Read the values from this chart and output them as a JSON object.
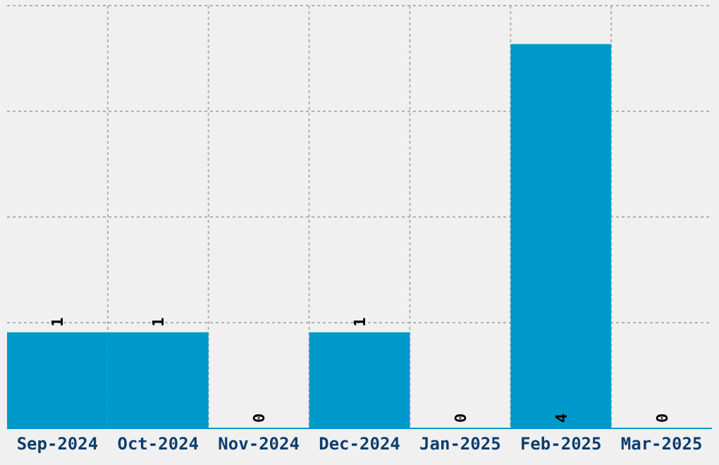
{
  "chart_data": {
    "type": "bar",
    "categories": [
      "Sep-2024",
      "Oct-2024",
      "Nov-2024",
      "Dec-2024",
      "Jan-2025",
      "Feb-2025",
      "Mar-2025"
    ],
    "values": [
      1,
      1,
      0,
      1,
      0,
      4,
      0
    ],
    "color": "#0099cc",
    "ylim": [
      0,
      4.4
    ],
    "yticks": [
      {
        "value": 0,
        "label": null
      },
      {
        "value": 1.1,
        "label": null
      },
      {
        "value": 2.2,
        "label": null
      },
      {
        "value": 3.3,
        "label": null
      },
      {
        "value": 4.4,
        "label": null
      }
    ],
    "tick_labels": "x",
    "grid": true,
    "data_labels": true
  }
}
